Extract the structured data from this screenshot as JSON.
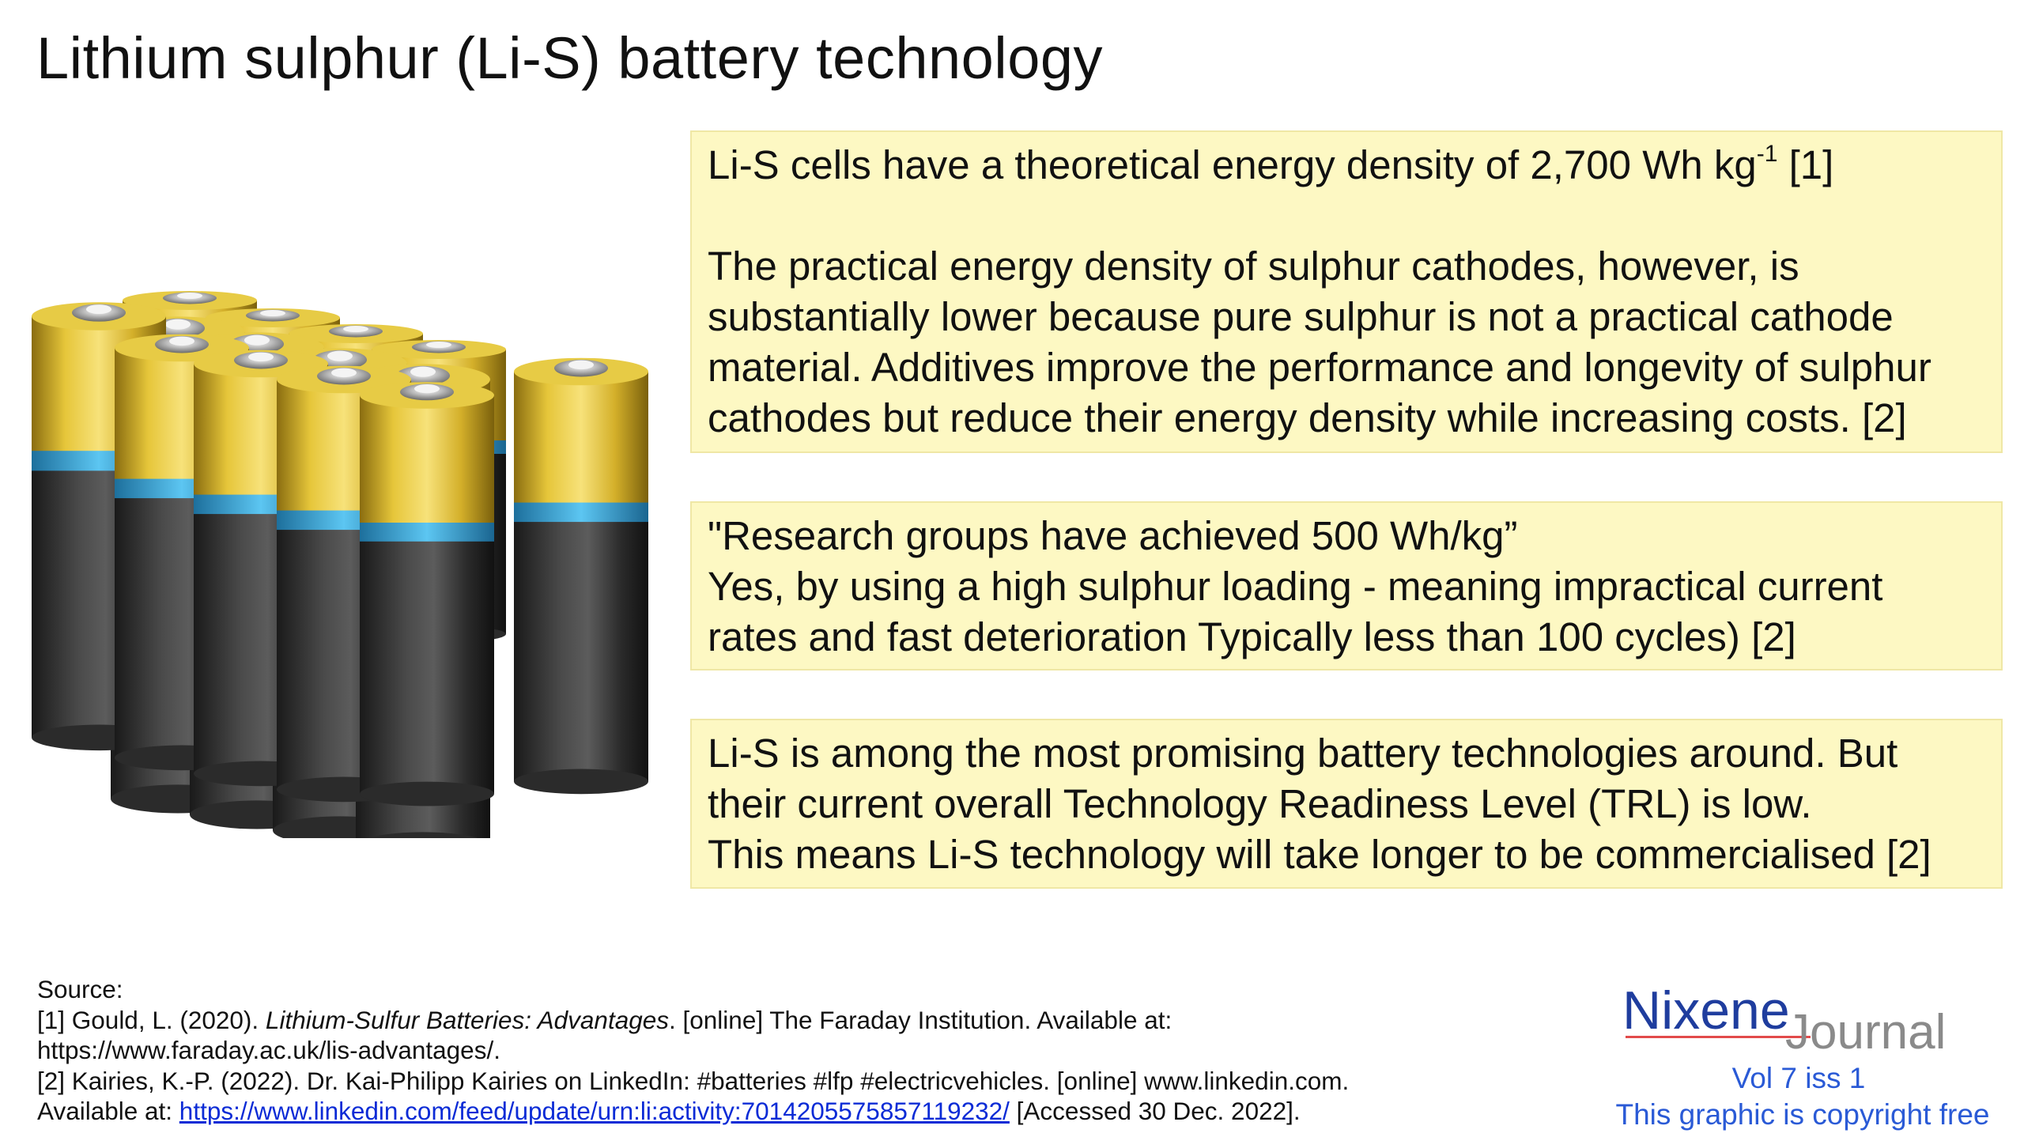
{
  "title": "Lithium sulphur (Li-S) battery technology",
  "box1": {
    "line1_pre": "Li-S cells have a theoretical energy density of 2,700 Wh kg",
    "line1_sup": "-1",
    "line1_post": " [1]",
    "para2": [
      "The practical energy density of sulphur cathodes, however, is",
      "substantially lower because pure sulphur is not a practical cathode",
      "material. Additives improve the performance and longevity of sulphur",
      "cathodes but reduce their energy density while increasing costs. [2]"
    ]
  },
  "box2": {
    "lines": [
      "\"Research groups have achieved 500 Wh/kg”",
      "Yes, by using a high sulphur loading - meaning impractical current",
      "rates and fast deterioration Typically less than 100 cycles) [2]"
    ]
  },
  "box3": {
    "lines": [
      "Li-S is among the most promising battery technologies around. But",
      "their current overall Technology Readiness Level (TRL) is low.",
      "This means Li-S technology will take longer to be commercialised [2]"
    ]
  },
  "sources": {
    "heading": "Source:",
    "ref1_pre": "[1] Gould, L. (2020). ",
    "ref1_italic": "Lithium-Sulfur Batteries: Advantages",
    "ref1_post": ". [online] The Faraday Institution. Available at:",
    "ref1_url": "https://www.faraday.ac.uk/lis-advantages/.",
    "ref2": "[2] Kairies, K.-P. (2022). Dr. Kai-Philipp Kairies on LinkedIn: #batteries #lfp #electricvehicles. [online] www.linkedin.com.",
    "ref2_avail": "Available at: ",
    "ref2_link": "https://www.linkedin.com/feed/update/urn:li:activity:7014205575857119232/",
    "ref2_accessed": "  [Accessed 30 Dec. 2022]."
  },
  "brand": {
    "name": "Nixene",
    "journal": "Journal",
    "vol": "Vol 7 iss 1",
    "copyright": "This graphic is copyright free"
  },
  "colors": {
    "note_background": "#fdf8c3",
    "battery_gold": "#d8b62a",
    "battery_blue": "#2ea6e0",
    "battery_body": "#2e2e2e",
    "brand_blue": "#1f3d9e",
    "link_blue": "#0b2bd6"
  },
  "illustration": "battery-cells-illustration"
}
